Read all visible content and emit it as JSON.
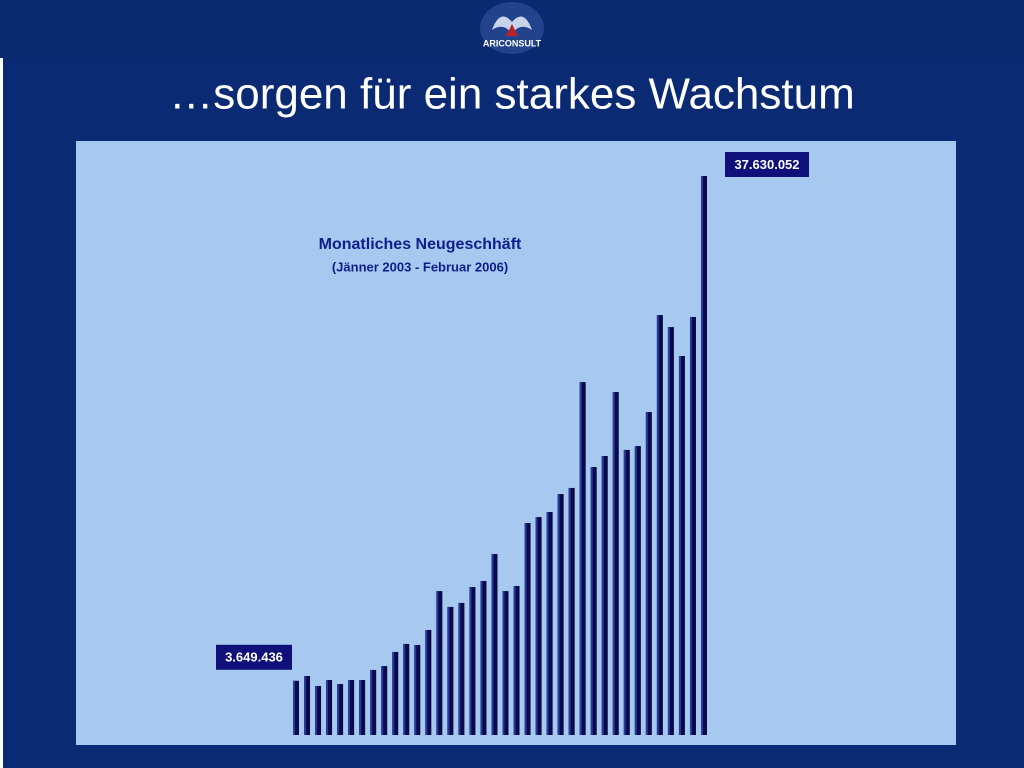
{
  "logo": {
    "text": "ARICONSULT"
  },
  "slide_title": "…sorgen für ein starkes Wachstum",
  "chart_data": {
    "type": "bar",
    "title": "Monatliches Neugeschhäft",
    "subtitle": "(Jänner 2003 - Februar 2006)",
    "color": "#0a0a4a",
    "values": [
      3649436,
      3970000,
      3300000,
      3700000,
      3430000,
      3700000,
      3700000,
      4380000,
      4640000,
      5590000,
      6130000,
      6060000,
      7070000,
      9690000,
      8620000,
      8890000,
      9960000,
      10370000,
      12180000,
      9690000,
      10030000,
      14270000,
      14670000,
      15010000,
      16220000,
      16630000,
      23760000,
      18040000,
      18780000,
      23090000,
      19190000,
      19450000,
      21740000,
      28270000,
      27460000,
      25510000,
      28140000,
      37630052
    ],
    "value_labels": [
      "3.649.436",
      null,
      null,
      null,
      null,
      null,
      null,
      null,
      null,
      null,
      null,
      null,
      null,
      null,
      null,
      null,
      null,
      null,
      null,
      null,
      null,
      null,
      null,
      null,
      null,
      null,
      null,
      null,
      null,
      null,
      null,
      null,
      null,
      null,
      null,
      null,
      null,
      "37.630.052"
    ]
  }
}
